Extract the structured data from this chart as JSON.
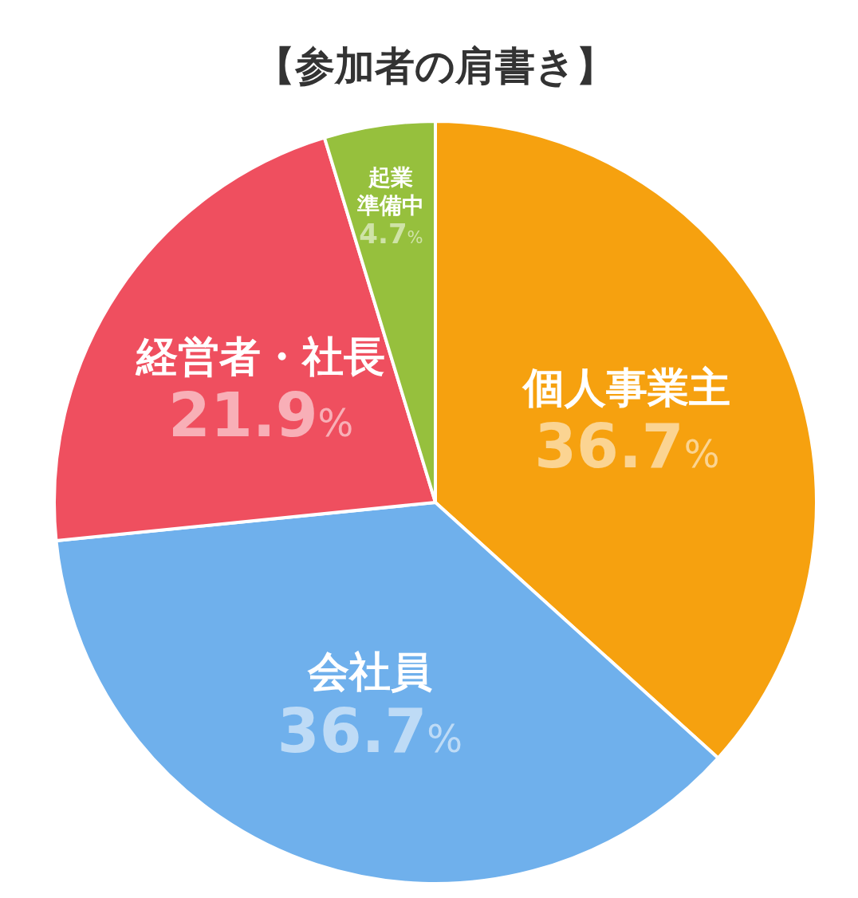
{
  "chart_data": {
    "type": "pie",
    "title": "【参加者の肩書き】",
    "categories": [
      "個人事業主",
      "会社員",
      "経営者・社長",
      "起業準備中"
    ],
    "values": [
      36.7,
      36.7,
      21.9,
      4.7
    ],
    "value_labels": [
      "36.7%",
      "36.7%",
      "21.9%",
      "4.7%"
    ],
    "colors": [
      "#f6a10f",
      "#6fb0ec",
      "#ef4f5f",
      "#96c03d"
    ]
  }
}
